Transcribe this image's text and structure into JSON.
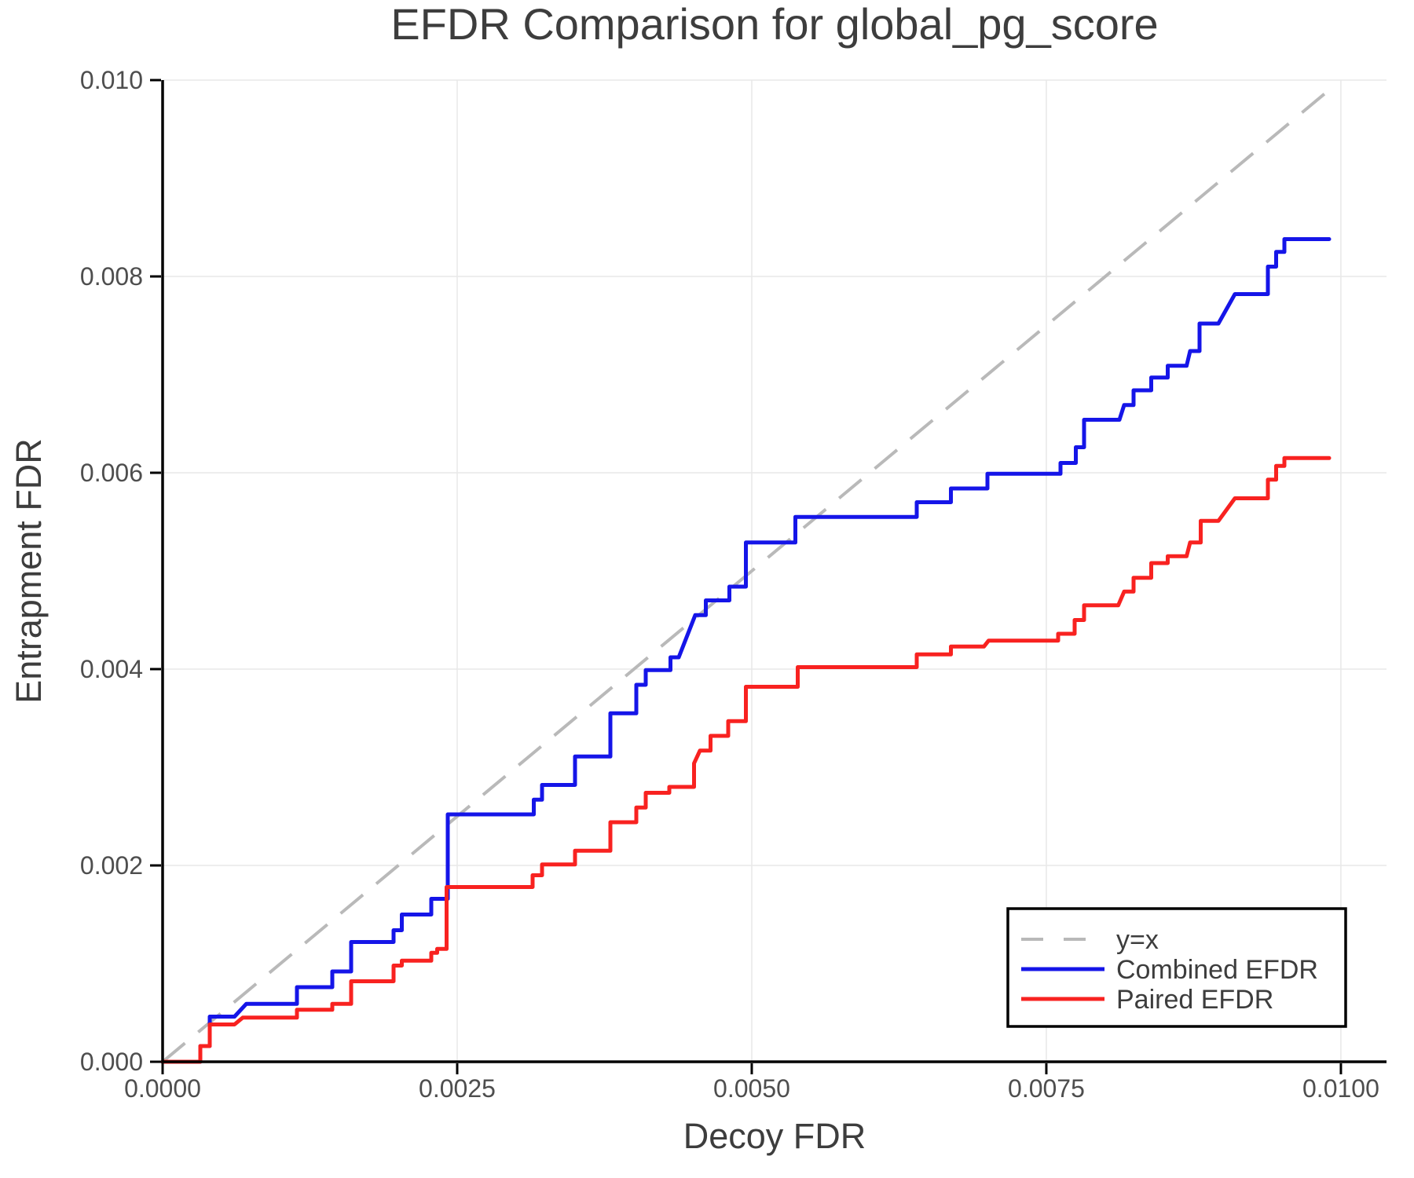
{
  "chart_data": {
    "type": "line",
    "title": "EFDR Comparison for global_pg_score",
    "xlabel": "Decoy FDR",
    "ylabel": "Entrapment FDR",
    "xlim": [
      0,
      0.010387
    ],
    "ylim": [
      0,
      0.01
    ],
    "grid": true,
    "x_ticks": {
      "values": [
        0.0,
        0.0025,
        0.005,
        0.0075,
        0.01
      ],
      "labels": [
        "0.0000",
        "0.0025",
        "0.0050",
        "0.0075",
        "0.0100"
      ]
    },
    "y_ticks": {
      "values": [
        0.0,
        0.002,
        0.004,
        0.006,
        0.008,
        0.01
      ],
      "labels": [
        "0.000",
        "0.002",
        "0.004",
        "0.006",
        "0.008",
        "0.010"
      ]
    },
    "colors": {
      "background": "#ffffff",
      "grid": "#e8e8e8",
      "axis": "#000000",
      "tick_label": "#4e4e4e",
      "text": "#3d3d3d",
      "identity": "#b9b9b9",
      "combined": "#1515e8",
      "paired": "#f82220"
    },
    "legend": {
      "position": "lower right",
      "entries": [
        {
          "label": "y=x",
          "color": "#b9b9b9",
          "dash": true
        },
        {
          "label": "Combined EFDR",
          "color": "#1515e8",
          "dash": false
        },
        {
          "label": "Paired EFDR",
          "color": "#f82220",
          "dash": false
        }
      ]
    },
    "series": [
      {
        "name": "y=x",
        "style": "dashed",
        "color": "#b9b9b9",
        "width": 4,
        "points": [
          [
            0.0,
            0.0
          ],
          [
            0.00995,
            0.00995
          ]
        ]
      },
      {
        "name": "Combined EFDR",
        "style": "solid",
        "color": "#1515e8",
        "width": 5,
        "points": [
          [
            0.0,
            0.0
          ],
          [
            0.00032,
            0.0
          ],
          [
            0.00032,
            0.00016
          ],
          [
            0.0004,
            0.00016
          ],
          [
            0.0004,
            0.00046
          ],
          [
            0.00061,
            0.00046
          ],
          [
            0.00071,
            0.00059
          ],
          [
            0.00114,
            0.00059
          ],
          [
            0.00114,
            0.00076
          ],
          [
            0.00144,
            0.00076
          ],
          [
            0.00144,
            0.00092
          ],
          [
            0.0016,
            0.00092
          ],
          [
            0.0016,
            0.00122
          ],
          [
            0.00196,
            0.00122
          ],
          [
            0.00196,
            0.00134
          ],
          [
            0.00203,
            0.00134
          ],
          [
            0.00203,
            0.0015
          ],
          [
            0.00228,
            0.0015
          ],
          [
            0.00228,
            0.00166
          ],
          [
            0.00242,
            0.00166
          ],
          [
            0.00242,
            0.00252
          ],
          [
            0.00315,
            0.00252
          ],
          [
            0.00315,
            0.00267
          ],
          [
            0.00322,
            0.00267
          ],
          [
            0.00322,
            0.00282
          ],
          [
            0.0035,
            0.00282
          ],
          [
            0.0035,
            0.00311
          ],
          [
            0.0038,
            0.00311
          ],
          [
            0.0038,
            0.00355
          ],
          [
            0.00402,
            0.00355
          ],
          [
            0.00402,
            0.00384
          ],
          [
            0.0041,
            0.00384
          ],
          [
            0.0041,
            0.00399
          ],
          [
            0.00431,
            0.00399
          ],
          [
            0.00431,
            0.00412
          ],
          [
            0.00438,
            0.00412
          ],
          [
            0.00452,
            0.00455
          ],
          [
            0.00461,
            0.00455
          ],
          [
            0.00461,
            0.0047
          ],
          [
            0.00481,
            0.0047
          ],
          [
            0.00481,
            0.00484
          ],
          [
            0.00495,
            0.00484
          ],
          [
            0.00495,
            0.00529
          ],
          [
            0.00537,
            0.00529
          ],
          [
            0.00537,
            0.00555
          ],
          [
            0.0064,
            0.00555
          ],
          [
            0.0064,
            0.0057
          ],
          [
            0.00669,
            0.0057
          ],
          [
            0.00669,
            0.00584
          ],
          [
            0.007,
            0.00584
          ],
          [
            0.007,
            0.00599
          ],
          [
            0.00762,
            0.00599
          ],
          [
            0.00762,
            0.0061
          ],
          [
            0.00775,
            0.0061
          ],
          [
            0.00775,
            0.00626
          ],
          [
            0.00782,
            0.00626
          ],
          [
            0.00782,
            0.00654
          ],
          [
            0.00812,
            0.00654
          ],
          [
            0.00816,
            0.00669
          ],
          [
            0.00824,
            0.00669
          ],
          [
            0.00824,
            0.00684
          ],
          [
            0.00839,
            0.00684
          ],
          [
            0.00839,
            0.00697
          ],
          [
            0.00853,
            0.00697
          ],
          [
            0.00853,
            0.00709
          ],
          [
            0.00869,
            0.00709
          ],
          [
            0.00872,
            0.00724
          ],
          [
            0.0088,
            0.00724
          ],
          [
            0.0088,
            0.00752
          ],
          [
            0.00896,
            0.00752
          ],
          [
            0.0091,
            0.00782
          ],
          [
            0.00938,
            0.00782
          ],
          [
            0.00938,
            0.0081
          ],
          [
            0.00945,
            0.0081
          ],
          [
            0.00945,
            0.00825
          ],
          [
            0.00952,
            0.00825
          ],
          [
            0.00952,
            0.00838
          ],
          [
            0.0099,
            0.00838
          ]
        ]
      },
      {
        "name": "Paired EFDR",
        "style": "solid",
        "color": "#f82220",
        "width": 5,
        "points": [
          [
            0.0,
            0.0
          ],
          [
            0.00032,
            0.0
          ],
          [
            0.00032,
            0.00016
          ],
          [
            0.0004,
            0.00016
          ],
          [
            0.0004,
            0.00038
          ],
          [
            0.00061,
            0.00038
          ],
          [
            0.00068,
            0.00045
          ],
          [
            0.00114,
            0.00045
          ],
          [
            0.00114,
            0.00053
          ],
          [
            0.00144,
            0.00053
          ],
          [
            0.00144,
            0.00059
          ],
          [
            0.0016,
            0.00059
          ],
          [
            0.0016,
            0.00082
          ],
          [
            0.00196,
            0.00082
          ],
          [
            0.00196,
            0.00098
          ],
          [
            0.00203,
            0.00098
          ],
          [
            0.00203,
            0.00103
          ],
          [
            0.00228,
            0.00103
          ],
          [
            0.00228,
            0.00111
          ],
          [
            0.00233,
            0.00111
          ],
          [
            0.00233,
            0.00115
          ],
          [
            0.00241,
            0.00115
          ],
          [
            0.00241,
            0.00178
          ],
          [
            0.00314,
            0.00178
          ],
          [
            0.00314,
            0.0019
          ],
          [
            0.00322,
            0.0019
          ],
          [
            0.00322,
            0.00201
          ],
          [
            0.0035,
            0.00201
          ],
          [
            0.0035,
            0.00215
          ],
          [
            0.0038,
            0.00215
          ],
          [
            0.0038,
            0.00244
          ],
          [
            0.00402,
            0.00244
          ],
          [
            0.00402,
            0.00259
          ],
          [
            0.0041,
            0.00259
          ],
          [
            0.0041,
            0.00274
          ],
          [
            0.0043,
            0.00274
          ],
          [
            0.0043,
            0.0028
          ],
          [
            0.00451,
            0.0028
          ],
          [
            0.00451,
            0.00304
          ],
          [
            0.00456,
            0.00317
          ],
          [
            0.00465,
            0.00317
          ],
          [
            0.00465,
            0.00332
          ],
          [
            0.0048,
            0.00332
          ],
          [
            0.0048,
            0.00347
          ],
          [
            0.00495,
            0.00347
          ],
          [
            0.00495,
            0.00382
          ],
          [
            0.00539,
            0.00382
          ],
          [
            0.00539,
            0.00402
          ],
          [
            0.0064,
            0.00402
          ],
          [
            0.0064,
            0.00415
          ],
          [
            0.00669,
            0.00415
          ],
          [
            0.00669,
            0.00423
          ],
          [
            0.00697,
            0.00423
          ],
          [
            0.00701,
            0.00429
          ],
          [
            0.0076,
            0.00429
          ],
          [
            0.0076,
            0.00436
          ],
          [
            0.00774,
            0.00436
          ],
          [
            0.00774,
            0.0045
          ],
          [
            0.00782,
            0.0045
          ],
          [
            0.00782,
            0.00465
          ],
          [
            0.00811,
            0.00465
          ],
          [
            0.00816,
            0.00479
          ],
          [
            0.00824,
            0.00479
          ],
          [
            0.00824,
            0.00493
          ],
          [
            0.00839,
            0.00493
          ],
          [
            0.00839,
            0.00508
          ],
          [
            0.00853,
            0.00508
          ],
          [
            0.00853,
            0.00515
          ],
          [
            0.00869,
            0.00515
          ],
          [
            0.00872,
            0.00529
          ],
          [
            0.00881,
            0.00529
          ],
          [
            0.00881,
            0.00551
          ],
          [
            0.00896,
            0.00551
          ],
          [
            0.0091,
            0.00574
          ],
          [
            0.00938,
            0.00574
          ],
          [
            0.00938,
            0.00593
          ],
          [
            0.00945,
            0.00593
          ],
          [
            0.00945,
            0.00607
          ],
          [
            0.00952,
            0.00607
          ],
          [
            0.00952,
            0.00615
          ],
          [
            0.0099,
            0.00615
          ]
        ]
      }
    ]
  }
}
